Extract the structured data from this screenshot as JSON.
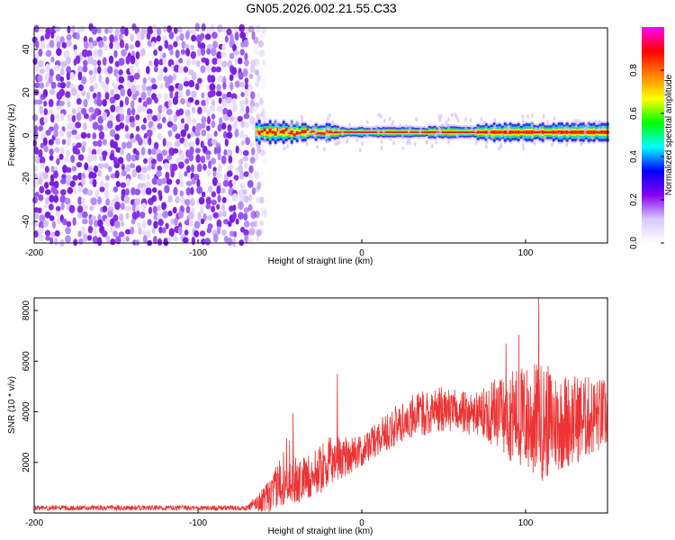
{
  "title": "GN05.2026.002.21.55.C33",
  "chart_data": [
    {
      "type": "heatmap",
      "title": "GN05.2026.002.21.55.C33",
      "xlabel": "Height of straight line (km)",
      "ylabel": "Frequency (Hz)",
      "xlim": [
        -200,
        150
      ],
      "ylim": [
        -50,
        50
      ],
      "xticks": [
        "-200",
        "-100",
        "0",
        "100"
      ],
      "yticks": [
        "-40",
        "-20",
        "0",
        "20",
        "40"
      ],
      "xtick_values": [
        -200,
        -100,
        0,
        100
      ],
      "ytick_values": [
        -40,
        -20,
        0,
        20,
        40
      ],
      "noise_region_x": [
        -200,
        -60
      ],
      "signal_onset_km": -65,
      "signal_center_freq_hz": 1.5,
      "colorbar": {
        "label": "Normalized spectral amplitude",
        "range": [
          0,
          1
        ],
        "ticks": [
          "0.0",
          "0.2",
          "0.4",
          "0.6",
          "0.8"
        ],
        "tick_values": [
          0.0,
          0.2,
          0.4,
          0.6,
          0.8
        ],
        "colormap": [
          "#ffffff",
          "#d8c8ff",
          "#8800ee",
          "#0000ff",
          "#00ffff",
          "#00ff00",
          "#ffff00",
          "#ff8000",
          "#ff0000",
          "#ff00ff"
        ]
      }
    },
    {
      "type": "line",
      "xlabel": "Height of straight line (km)",
      "ylabel": "SNR (10 * v/v)",
      "xlim": [
        -200,
        150
      ],
      "ylim": [
        0,
        8500
      ],
      "xticks": [
        "-200",
        "-100",
        "0",
        "100"
      ],
      "yticks": [
        "2000",
        "4000",
        "6000",
        "8000"
      ],
      "xtick_values": [
        -200,
        -100,
        0,
        100
      ],
      "ytick_values": [
        2000,
        4000,
        6000,
        8000
      ],
      "color": "#ee3333",
      "envelope": {
        "x": [
          -200,
          -70,
          -55,
          -45,
          -40,
          -30,
          -20,
          -10,
          0,
          10,
          20,
          30,
          40,
          50,
          60,
          70,
          80,
          90,
          100,
          110,
          120,
          130,
          140,
          150
        ],
        "mean": [
          200,
          200,
          700,
          1800,
          1200,
          1500,
          2000,
          2300,
          2400,
          3000,
          3400,
          3800,
          4000,
          4100,
          4000,
          3900,
          4000,
          3900,
          3700,
          3600,
          3600,
          3700,
          3800,
          3900
        ],
        "amp": [
          100,
          100,
          700,
          1400,
          900,
          900,
          1000,
          900,
          600,
          700,
          800,
          900,
          900,
          900,
          800,
          900,
          1400,
          1800,
          2200,
          2400,
          2000,
          1800,
          1600,
          1400
        ]
      },
      "spikes": [
        {
          "x": -42,
          "y": 3950
        },
        {
          "x": -15,
          "y": 5500
        },
        {
          "x": 108,
          "y": 8500
        },
        {
          "x": 96,
          "y": 7050
        },
        {
          "x": 88,
          "y": 6700
        }
      ]
    }
  ]
}
